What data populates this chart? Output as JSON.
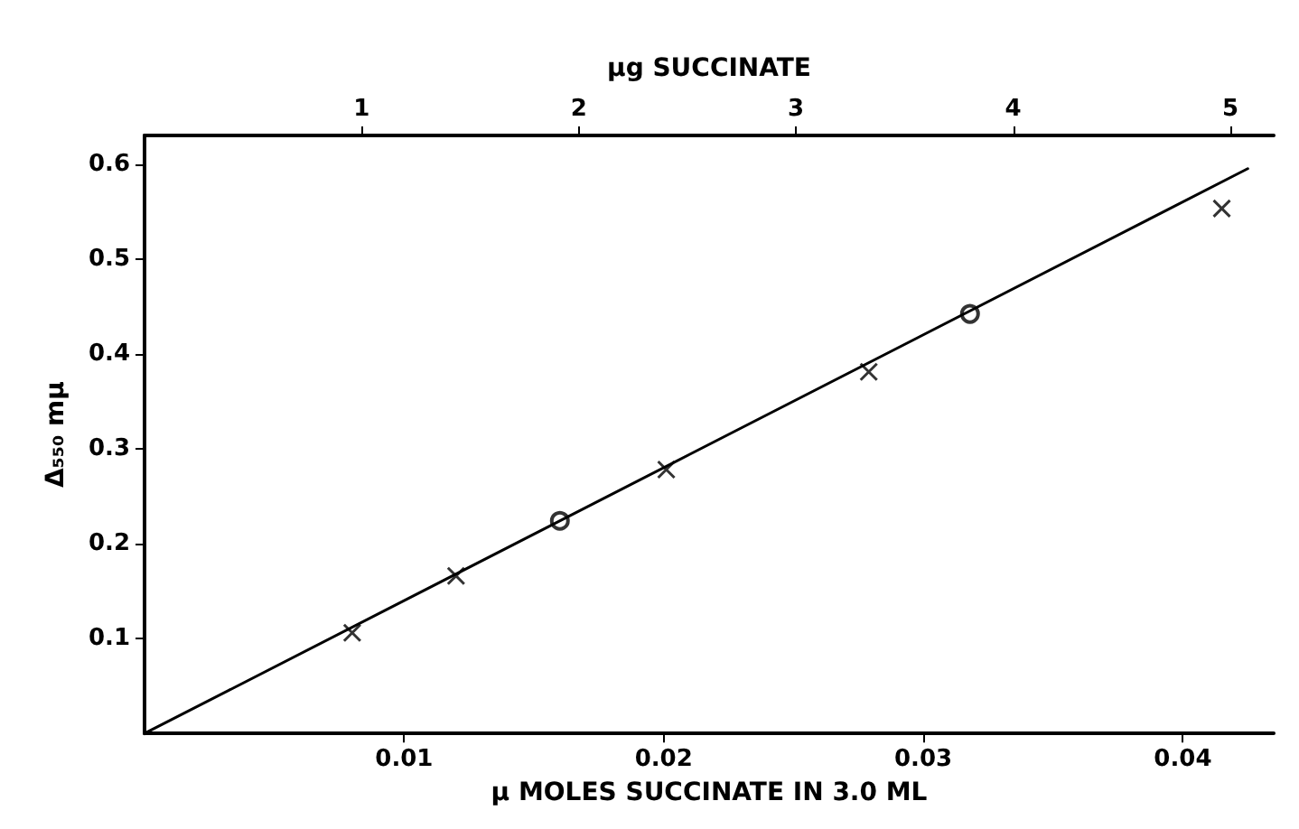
{
  "chart_data": {
    "type": "scatter",
    "xlabel": "μ MOLES SUCCINATE IN 3.0 ML",
    "x2label": "μg SUCCINATE",
    "ylabel": "Δ₅₅₀ mμ",
    "xlim": [
      0,
      0.0435
    ],
    "xticks": [
      0.01,
      0.02,
      0.03,
      0.04
    ],
    "x2lim": [
      0,
      5.2
    ],
    "x2ticks": [
      1,
      2,
      3,
      4,
      5
    ],
    "ylim": [
      0,
      0.63
    ],
    "yticks": [
      0.1,
      0.2,
      0.3,
      0.4,
      0.5,
      0.6
    ],
    "grid": false,
    "series": [
      {
        "type": "line",
        "color": "#000000",
        "marker": "none",
        "line_style": "solid",
        "x": [
          0,
          0.0425
        ],
        "values": [
          0,
          0.595
        ]
      },
      {
        "type": "scatter",
        "color": "#000000",
        "marker": "cross",
        "x": [
          0.008,
          0.012,
          0.0201,
          0.0279,
          0.0415
        ],
        "values": [
          0.106,
          0.166,
          0.278,
          0.381,
          0.553
        ]
      },
      {
        "type": "scatter",
        "color": "#000000",
        "marker": "circle",
        "x": [
          0.016,
          0.0318
        ],
        "values": [
          0.224,
          0.442
        ]
      }
    ]
  }
}
